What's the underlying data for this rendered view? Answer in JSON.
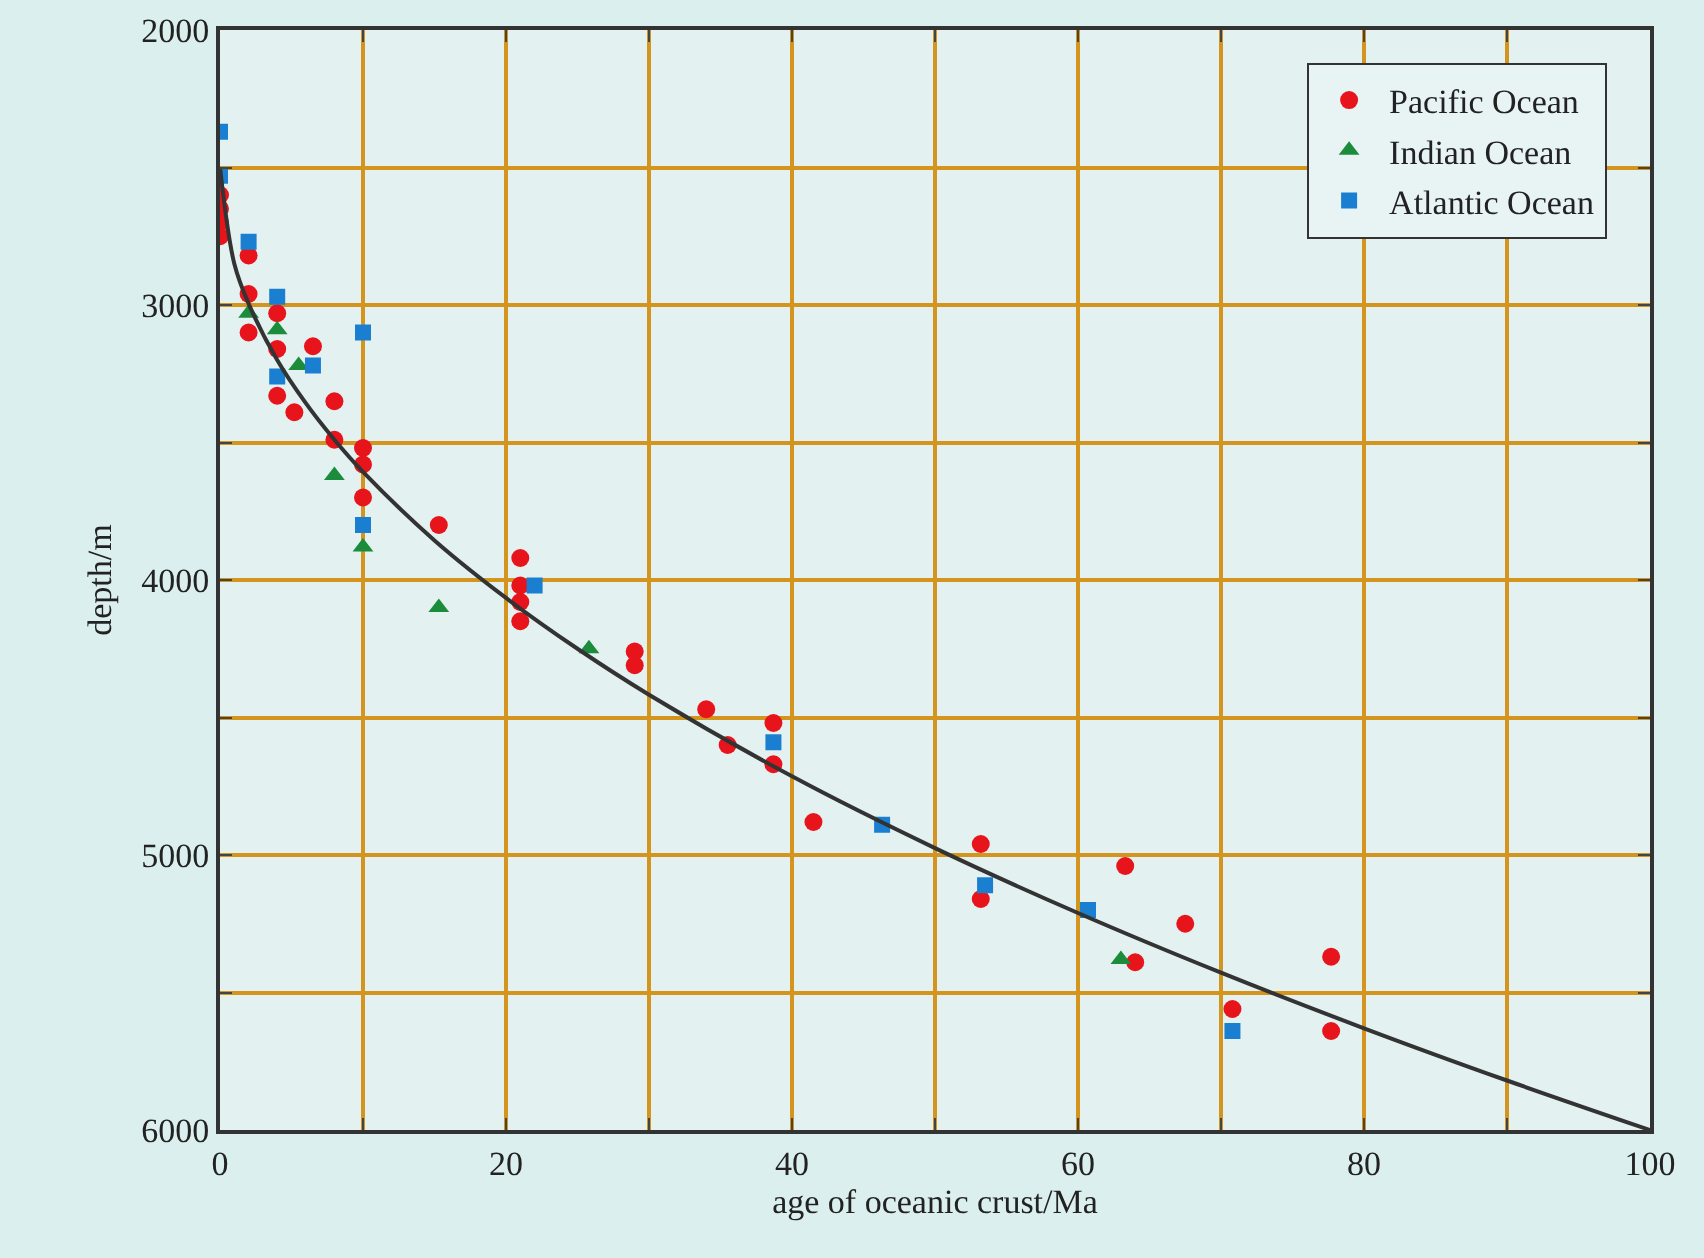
{
  "chart_data": {
    "type": "scatter",
    "xlabel": "age of oceanic crust/Ma",
    "ylabel": "depth/m",
    "xlim": [
      0,
      100
    ],
    "ylim": [
      6000,
      2000
    ],
    "xticks": [
      0,
      {
        "value": 10,
        "label": null
      },
      20,
      {
        "value": 30,
        "label": null
      },
      40,
      {
        "value": 50,
        "label": null
      },
      60,
      {
        "value": 70,
        "label": null
      },
      80,
      {
        "value": 90,
        "label": null
      },
      100
    ],
    "yticks": [
      2000,
      {
        "value": 2500,
        "label": null
      },
      3000,
      {
        "value": 3500,
        "label": null
      },
      4000,
      {
        "value": 4500,
        "label": null
      },
      5000,
      {
        "value": 5500,
        "label": null
      },
      6000
    ],
    "grid": true,
    "legend": "top right",
    "series": [
      {
        "name": "Pacific Ocean",
        "color": "#e8141c",
        "marker": "circle",
        "x": [
          0,
          0,
          0,
          0,
          2,
          2,
          2,
          4,
          4,
          4,
          5.2,
          6.5,
          8,
          8,
          10,
          10,
          10,
          15.3,
          21,
          21,
          21,
          21,
          29,
          29,
          34,
          35.5,
          38.7,
          38.7,
          41.5,
          53.2,
          53.2,
          63.3,
          64,
          67.5,
          70.8,
          77.7,
          77.7
        ],
        "values": [
          2600,
          2650,
          2700,
          2750,
          2820,
          2960,
          3100,
          3030,
          3160,
          3330,
          3390,
          3150,
          3350,
          3490,
          3520,
          3580,
          3700,
          3800,
          3920,
          4020,
          4080,
          4150,
          4260,
          4310,
          4470,
          4600,
          4520,
          4670,
          4880,
          4960,
          5160,
          5040,
          5390,
          5250,
          5560,
          5370,
          5640
        ]
      },
      {
        "name": "Indian Ocean",
        "color": "#1a8c3c",
        "marker": "triangle",
        "x": [
          2,
          4,
          5.5,
          8,
          10,
          15.3,
          25.8,
          63
        ],
        "values": [
          3030,
          3090,
          3220,
          3620,
          3880,
          4100,
          4250,
          5380
        ]
      },
      {
        "name": "Atlantic Ocean",
        "color": "#1a7fd0",
        "marker": "square",
        "x": [
          0,
          0,
          2,
          4,
          4,
          6.5,
          10,
          10,
          22,
          38.7,
          46.3,
          53.5,
          60.7,
          70.8
        ],
        "values": [
          2370,
          2530,
          2770,
          2970,
          3260,
          3220,
          3100,
          3800,
          4020,
          4590,
          4890,
          5110,
          5200,
          5640
        ]
      },
      {
        "type": "line",
        "color": "#333333",
        "marker": "none",
        "x": [
          0,
          1,
          2,
          4,
          6,
          8,
          10,
          15,
          20,
          25,
          30,
          40,
          50,
          60,
          70,
          80,
          90,
          100
        ],
        "values": [
          2500,
          2850,
          2995,
          3200,
          3357,
          3490,
          3607,
          3856,
          4065,
          4250,
          4417,
          4714,
          4975,
          5211,
          5428,
          5630,
          5820,
          6000
        ]
      }
    ]
  }
}
